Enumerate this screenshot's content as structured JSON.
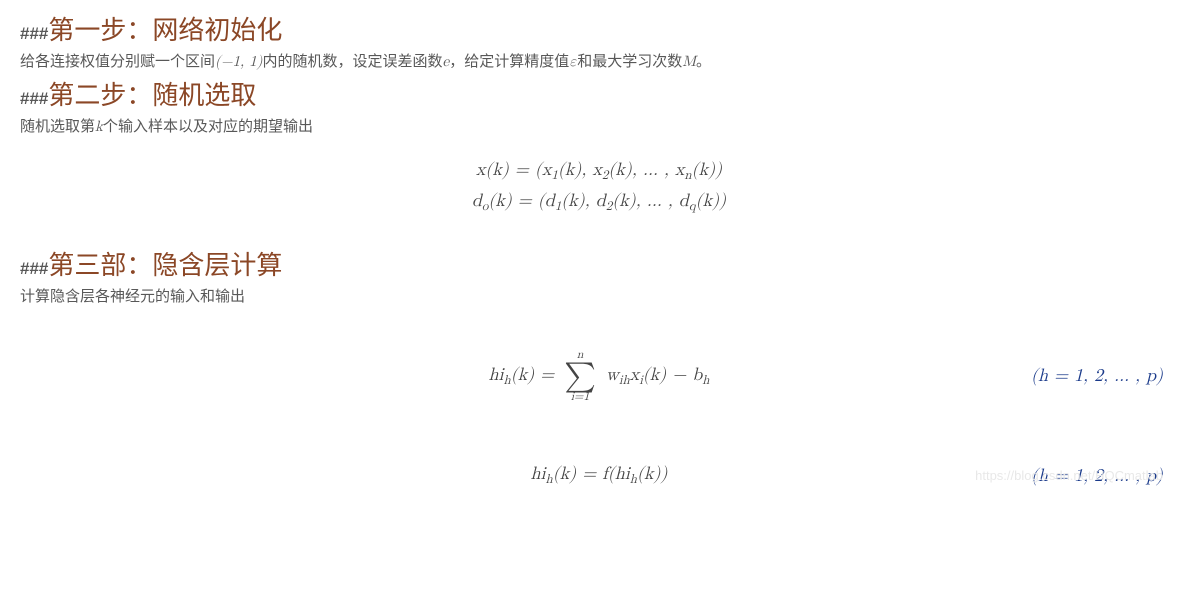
{
  "hashprefix": "###",
  "step1": {
    "title": "第一步：网络初始化",
    "text_a": "给各连接权值分别赋一个区间",
    "interval": "(−1, 1)",
    "text_b": "内的随机数，设定误差函数",
    "e": "e",
    "text_c": "，给定计算精度值",
    "eps": "ε",
    "text_d": "和最大学习次数",
    "M": "M",
    "text_e": "。"
  },
  "step2": {
    "title": "第二步：随机选取",
    "text_a": "随机选取第",
    "k": "k",
    "text_b": "个输入样本以及对应的期望输出",
    "eq1": "x(k) = (x",
    "eq1_s1": "1",
    "eq1_m": "(k), x",
    "eq1_s2": "2",
    "eq1_m2": "(k), … , x",
    "eq1_sn": "n",
    "eq1_end": "(k))",
    "eq2_a": "d",
    "eq2_sub_o": "o",
    "eq2_b": "(k) = (d",
    "eq2_s1": "1",
    "eq2_c": "(k), d",
    "eq2_s2": "2",
    "eq2_d": "(k), … , d",
    "eq2_sq": "q",
    "eq2_e": "(k))"
  },
  "step3": {
    "title": "第三部：隐含层计算",
    "text": "计算隐含层各神经元的输入和输出",
    "eqA_lhs": "hi",
    "eqA_subh": "h",
    "eqA_k": "(k) = ",
    "sum_top": "n",
    "sum_bot": "i=1",
    "w": "w",
    "w_sub": "ih",
    "xi": "x",
    "xi_sub": "i",
    "rest_k": "(k) − b",
    "b_sub": "h",
    "range_open": "(h = 1, 2, … , p)",
    "eqB_lhs": "hi",
    "eqB_subh": "h",
    "eqB_mid": "(k) = f(hi",
    "eqB_subh2": "h",
    "eqB_end": "(k))"
  },
  "watermark": "https://blog.csdn.net/HQCmatlab",
  "colors": {
    "heading": "#8b4726",
    "text": "#585858",
    "eqnum": "#1a3a8a"
  }
}
